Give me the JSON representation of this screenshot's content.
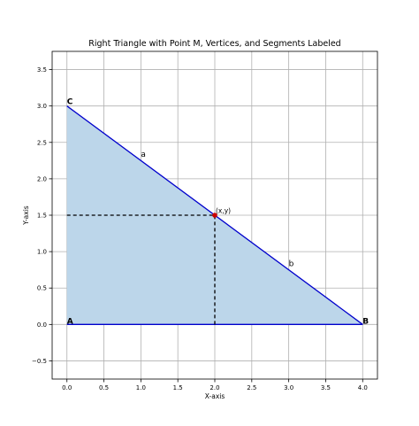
{
  "chart_data": {
    "type": "line",
    "title": "Right Triangle with Point M, Vertices, and Segments Labeled",
    "xlabel": "X-axis",
    "ylabel": "Y-axis",
    "xlim": [
      -0.2,
      4.2
    ],
    "ylim": [
      -0.75,
      3.75
    ],
    "xticks": [
      0.0,
      0.5,
      1.0,
      1.5,
      2.0,
      2.5,
      3.0,
      3.5,
      4.0
    ],
    "xtick_labels": [
      "0.0",
      "0.5",
      "1.0",
      "1.5",
      "2.0",
      "2.5",
      "3.0",
      "3.5",
      "4.0"
    ],
    "yticks": [
      -0.5,
      0.0,
      0.5,
      1.0,
      1.5,
      2.0,
      2.5,
      3.0,
      3.5
    ],
    "ytick_labels": [
      "−0.5",
      "0.0",
      "0.5",
      "1.0",
      "1.5",
      "2.0",
      "2.5",
      "3.0",
      "3.5"
    ],
    "grid": true,
    "triangle": {
      "vertices": [
        {
          "label": "A",
          "x": 0,
          "y": 0
        },
        {
          "label": "B",
          "x": 4,
          "y": 0
        },
        {
          "label": "C",
          "x": 0,
          "y": 3
        }
      ],
      "fill_color": "#bcd6ea",
      "edge_color": "#0000cc"
    },
    "segment_labels": [
      {
        "label": "a",
        "x": 1.0,
        "y": 2.3
      },
      {
        "label": "b",
        "x": 3.0,
        "y": 0.8
      }
    ],
    "point": {
      "label": "(x,y)",
      "x": 2.0,
      "y": 1.5,
      "color": "#cc0000"
    },
    "dashed_lines": [
      {
        "x": [
          0,
          2
        ],
        "y": [
          1.5,
          1.5
        ]
      },
      {
        "x": [
          2,
          2
        ],
        "y": [
          0,
          1.5
        ]
      }
    ]
  }
}
